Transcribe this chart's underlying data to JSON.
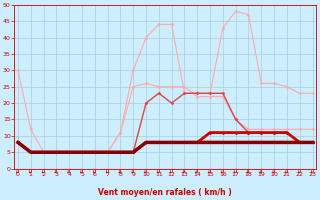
{
  "bg_color": "#cceeff",
  "grid_color": "#aaccdd",
  "x": [
    0,
    1,
    2,
    3,
    4,
    5,
    6,
    7,
    8,
    9,
    10,
    11,
    12,
    13,
    14,
    15,
    16,
    17,
    18,
    19,
    20,
    21,
    22,
    23
  ],
  "lines": [
    {
      "y": [
        30,
        12,
        5,
        5,
        5,
        5,
        5,
        5,
        11,
        30,
        40,
        44,
        44,
        23,
        23,
        23,
        43,
        48,
        47,
        26,
        26,
        25,
        23,
        23
      ],
      "color": "#ffaaaa",
      "lw": 0.8,
      "marker": "D",
      "ms": 1.5,
      "zorder": 2
    },
    {
      "y": [
        8,
        5,
        5,
        5,
        5,
        5,
        5,
        5,
        11,
        25,
        26,
        25,
        25,
        25,
        22,
        22,
        22,
        15,
        12,
        12,
        12,
        12,
        12,
        12
      ],
      "color": "#ffaaaa",
      "lw": 0.8,
      "marker": "D",
      "ms": 1.5,
      "zorder": 2
    },
    {
      "y": [
        8,
        5,
        5,
        5,
        5,
        5,
        5,
        5,
        5,
        5,
        20,
        23,
        20,
        23,
        23,
        23,
        23,
        15,
        11,
        11,
        11,
        11,
        8,
        8
      ],
      "color": "#dd4444",
      "lw": 1.0,
      "marker": "D",
      "ms": 1.5,
      "zorder": 3
    },
    {
      "y": [
        8,
        5,
        5,
        5,
        5,
        5,
        5,
        5,
        5,
        5,
        8,
        8,
        8,
        8,
        8,
        11,
        11,
        11,
        11,
        11,
        11,
        11,
        8,
        8
      ],
      "color": "#cc0000",
      "lw": 2.0,
      "marker": "D",
      "ms": 1.5,
      "zorder": 4
    },
    {
      "y": [
        8,
        5,
        5,
        5,
        5,
        5,
        5,
        5,
        5,
        5,
        8,
        8,
        8,
        8,
        8,
        8,
        8,
        8,
        8,
        8,
        8,
        8,
        8,
        8
      ],
      "color": "#880000",
      "lw": 2.5,
      "marker": "D",
      "ms": 1.5,
      "zorder": 5
    }
  ],
  "xlim": [
    -0.3,
    23.3
  ],
  "ylim": [
    0,
    50
  ],
  "yticks": [
    0,
    5,
    10,
    15,
    20,
    25,
    30,
    35,
    40,
    45,
    50
  ],
  "xticks": [
    0,
    1,
    2,
    3,
    4,
    5,
    6,
    7,
    8,
    9,
    10,
    11,
    12,
    13,
    14,
    15,
    16,
    17,
    18,
    19,
    20,
    21,
    22,
    23
  ],
  "xlabel": "Vent moyen/en rafales ( km/h )",
  "xlabel_color": "#cc0000",
  "axis_color": "#cc0000",
  "tick_color": "#cc0000",
  "tick_fontsize": 4.5,
  "xlabel_fontsize": 5.5
}
